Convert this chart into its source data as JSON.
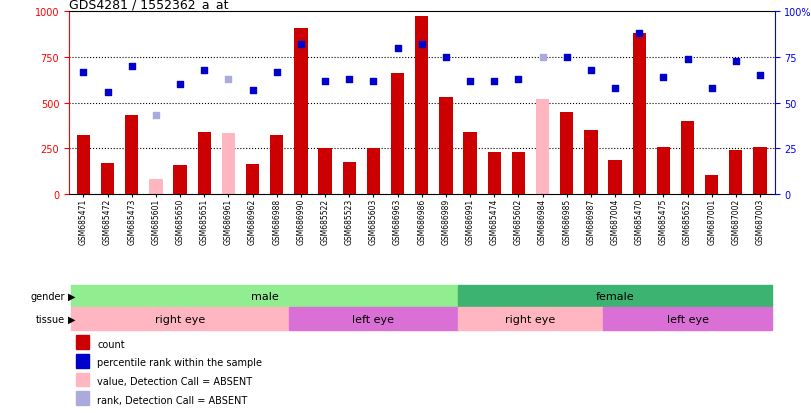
{
  "title": "GDS4281 / 1552362_a_at",
  "samples": [
    "GSM685471",
    "GSM685472",
    "GSM685473",
    "GSM685601",
    "GSM685650",
    "GSM685651",
    "GSM686961",
    "GSM686962",
    "GSM686988",
    "GSM686990",
    "GSM685522",
    "GSM685523",
    "GSM685603",
    "GSM686963",
    "GSM686986",
    "GSM686989",
    "GSM686991",
    "GSM685474",
    "GSM685602",
    "GSM686984",
    "GSM686985",
    "GSM686987",
    "GSM687004",
    "GSM685470",
    "GSM685475",
    "GSM685652",
    "GSM687001",
    "GSM687002",
    "GSM687003"
  ],
  "count": [
    320,
    170,
    430,
    null,
    155,
    340,
    null,
    160,
    320,
    910,
    250,
    175,
    250,
    660,
    975,
    530,
    340,
    230,
    230,
    null,
    450,
    350,
    185,
    880,
    255,
    400,
    100,
    240,
    255
  ],
  "count_absent": [
    null,
    null,
    null,
    80,
    null,
    null,
    335,
    null,
    null,
    null,
    null,
    null,
    null,
    null,
    null,
    null,
    null,
    null,
    null,
    520,
    null,
    null,
    null,
    null,
    null,
    null,
    null,
    null,
    null
  ],
  "percentile": [
    67,
    56,
    70,
    null,
    60,
    68,
    null,
    57,
    67,
    82,
    62,
    63,
    62,
    80,
    82,
    75,
    62,
    62,
    63,
    null,
    75,
    68,
    58,
    88,
    64,
    74,
    58,
    73,
    65
  ],
  "percentile_absent": [
    null,
    null,
    null,
    43,
    null,
    null,
    63,
    null,
    null,
    null,
    null,
    null,
    null,
    null,
    null,
    null,
    null,
    null,
    null,
    75,
    null,
    null,
    null,
    null,
    null,
    null,
    null,
    null,
    null
  ],
  "gender_groups": [
    {
      "label": "male",
      "start": 0,
      "end": 16,
      "color": "#90EE90"
    },
    {
      "label": "female",
      "start": 16,
      "end": 29,
      "color": "#3CB371"
    }
  ],
  "tissue_groups": [
    {
      "label": "right eye",
      "start": 0,
      "end": 9,
      "color": "#FFB6C1"
    },
    {
      "label": "left eye",
      "start": 9,
      "end": 16,
      "color": "#DA70D6"
    },
    {
      "label": "right eye",
      "start": 16,
      "end": 22,
      "color": "#FFB6C1"
    },
    {
      "label": "left eye",
      "start": 22,
      "end": 29,
      "color": "#DA70D6"
    }
  ],
  "ylim_left": [
    0,
    1000
  ],
  "yticks_left": [
    0,
    250,
    500,
    750,
    1000
  ],
  "yticks_right": [
    0,
    25,
    50,
    75,
    100
  ],
  "bar_color": "#CC0000",
  "absent_bar_color": "#FFB6C1",
  "dot_color": "#0000CC",
  "absent_dot_color": "#AAAADD",
  "legend_items": [
    {
      "label": "count",
      "color": "#CC0000"
    },
    {
      "label": "percentile rank within the sample",
      "color": "#0000CC"
    },
    {
      "label": "value, Detection Call = ABSENT",
      "color": "#FFB6C1"
    },
    {
      "label": "rank, Detection Call = ABSENT",
      "color": "#AAAADD"
    }
  ]
}
